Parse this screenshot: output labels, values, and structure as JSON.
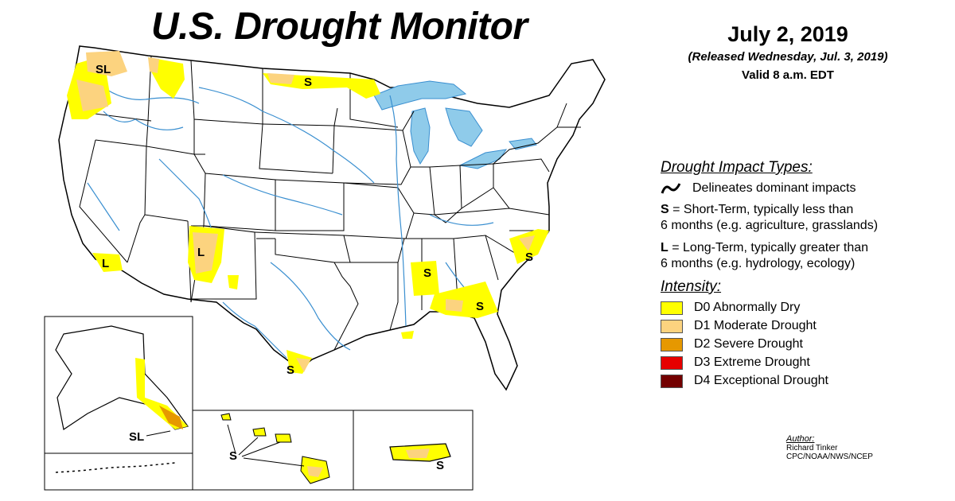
{
  "title": "U.S. Drought Monitor",
  "date": "July 2, 2019",
  "released": "(Released Wednesday, Jul. 3, 2019)",
  "valid": "Valid 8 a.m. EDT",
  "impact": {
    "heading": "Drought Impact Types:",
    "delineates": "Delineates dominant impacts",
    "short_key": "S",
    "short_text": "= Short-Term, typically less than",
    "short_text2": "6 months (e.g. agriculture, grasslands)",
    "long_key": "L",
    "long_text": "= Long-Term, typically greater than",
    "long_text2": "6 months (e.g. hydrology, ecology)"
  },
  "intensity": {
    "heading": "Intensity:",
    "items": [
      {
        "label": "D0 Abnormally Dry",
        "color": "#ffff00"
      },
      {
        "label": "D1 Moderate Drought",
        "color": "#fcd37f"
      },
      {
        "label": "D2 Severe Drought",
        "color": "#e69800"
      },
      {
        "label": "D3 Extreme Drought",
        "color": "#e60000"
      },
      {
        "label": "D4 Exceptional Drought",
        "color": "#730000"
      }
    ]
  },
  "map_labels": {
    "sl_nw": "SL",
    "s_nd": "S",
    "l_ca": "L",
    "l_nm": "L",
    "s_ms": "S",
    "s_ga": "S",
    "s_nc": "S",
    "s_tx": "S",
    "sl_ak": "SL",
    "s_hi": "S",
    "s_pr": "S"
  },
  "author": {
    "label": "Author:",
    "name": "Richard Tinker",
    "org": "CPC/NOAA/NWS/NCEP"
  }
}
